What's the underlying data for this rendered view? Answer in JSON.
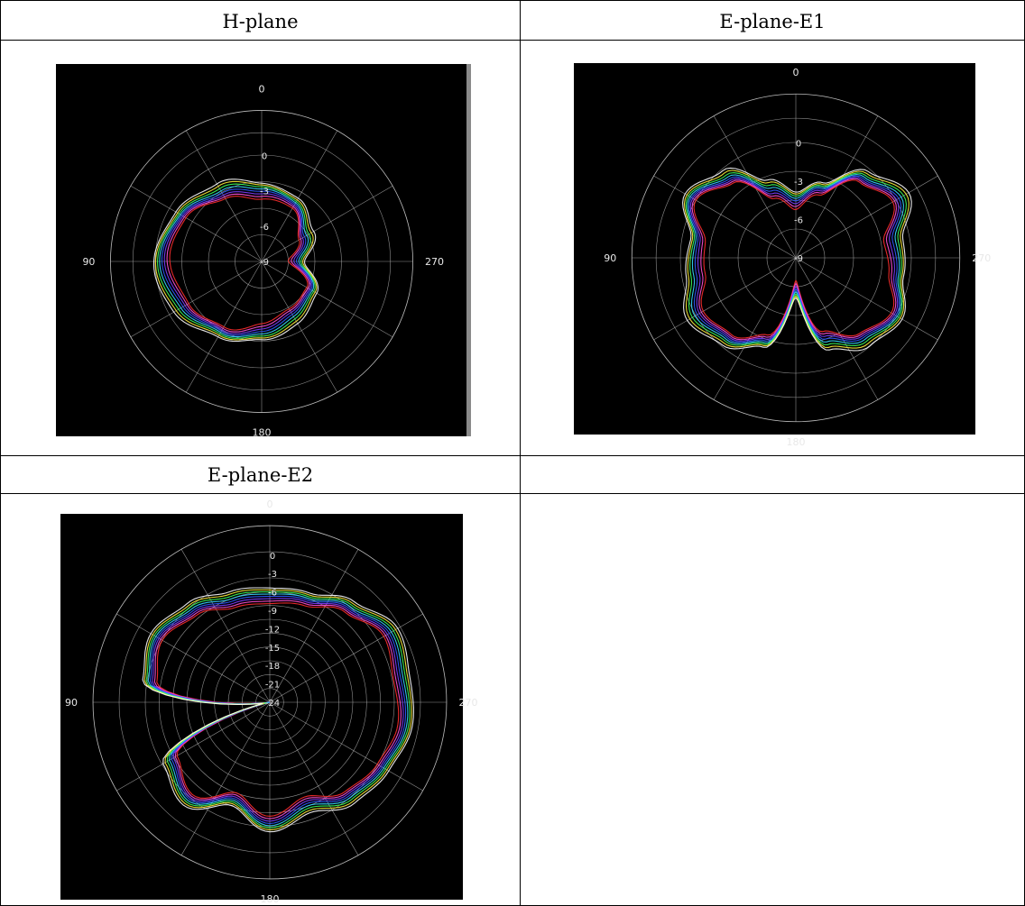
{
  "table": {
    "headers": [
      "H-plane",
      "E-plane-E1",
      "E-plane-E2",
      ""
    ]
  },
  "colors": {
    "background": "#000000",
    "grid": "#bdbdbd",
    "series": [
      "#ff2d2d",
      "#ff4fd8",
      "#7b3cff",
      "#2f5bff",
      "#35d6ff",
      "#3dff5a",
      "#ffef3a",
      "#ffffff",
      "#b8336a"
    ]
  },
  "chart_data": [
    {
      "type": "polar",
      "title": "H-plane",
      "angle_labels": [
        "0",
        "90",
        "180",
        "270"
      ],
      "radial_labels": [
        "0",
        "-3",
        "-6",
        "-9"
      ],
      "rlim": [
        -9,
        3
      ],
      "grid": true,
      "angle_unit": "deg",
      "angle_direction": "counterclockwise, 0 at top",
      "series_shape": {
        "theta": [
          0,
          30,
          60,
          90,
          120,
          150,
          180,
          210,
          240,
          270,
          300,
          330
        ],
        "r": [
          -3.0,
          -2.0,
          -1.0,
          -0.5,
          -1.0,
          -2.0,
          -3.0,
          -3.5,
          -4.0,
          -6.0,
          -4.5,
          -3.2
        ]
      },
      "series_count": 8
    },
    {
      "type": "polar",
      "title": "E-plane-E1",
      "angle_labels": [
        "0",
        "90",
        "180",
        "270"
      ],
      "radial_labels": [
        "0",
        "-3",
        "-6",
        "-9"
      ],
      "rlim": [
        -9,
        3
      ],
      "grid": true,
      "angle_unit": "deg",
      "angle_direction": "counterclockwise, 0 at top",
      "series_shape": {
        "theta": [
          0,
          20,
          40,
          60,
          80,
          100,
          120,
          140,
          160,
          180,
          200,
          220,
          240,
          260,
          280,
          300,
          320,
          340
        ],
        "r": [
          -4.5,
          -3.2,
          -0.6,
          0.6,
          -1.2,
          -1.0,
          0.2,
          -0.5,
          -2.0,
          -6.5,
          -2.0,
          -0.5,
          0.2,
          -1.0,
          -1.2,
          0.6,
          -0.6,
          -3.2
        ]
      },
      "series_count": 8
    },
    {
      "type": "polar",
      "title": "E-plane-E2",
      "angle_labels": [
        "0",
        "90",
        "180",
        "270"
      ],
      "radial_labels": [
        "0",
        "-3",
        "-6",
        "-9",
        "-12",
        "-15",
        "-18",
        "-21",
        "-24"
      ],
      "rlim": [
        -24,
        3
      ],
      "grid": true,
      "angle_unit": "deg",
      "angle_direction": "counterclockwise, 0 at top",
      "series_shape": {
        "theta": [
          0,
          20,
          40,
          60,
          80,
          100,
          120,
          140,
          160,
          180,
          200,
          220,
          240,
          260,
          280,
          300,
          320,
          340
        ],
        "r": [
          -6.5,
          -6.0,
          -4.0,
          -2.5,
          -4.0,
          -24.0,
          -5.0,
          -3.0,
          -7.0,
          -4.0,
          -6.0,
          -3.5,
          -2.5,
          -1.5,
          -2.0,
          -1.0,
          -3.5,
          -6.0
        ]
      },
      "series_count": 8
    }
  ]
}
